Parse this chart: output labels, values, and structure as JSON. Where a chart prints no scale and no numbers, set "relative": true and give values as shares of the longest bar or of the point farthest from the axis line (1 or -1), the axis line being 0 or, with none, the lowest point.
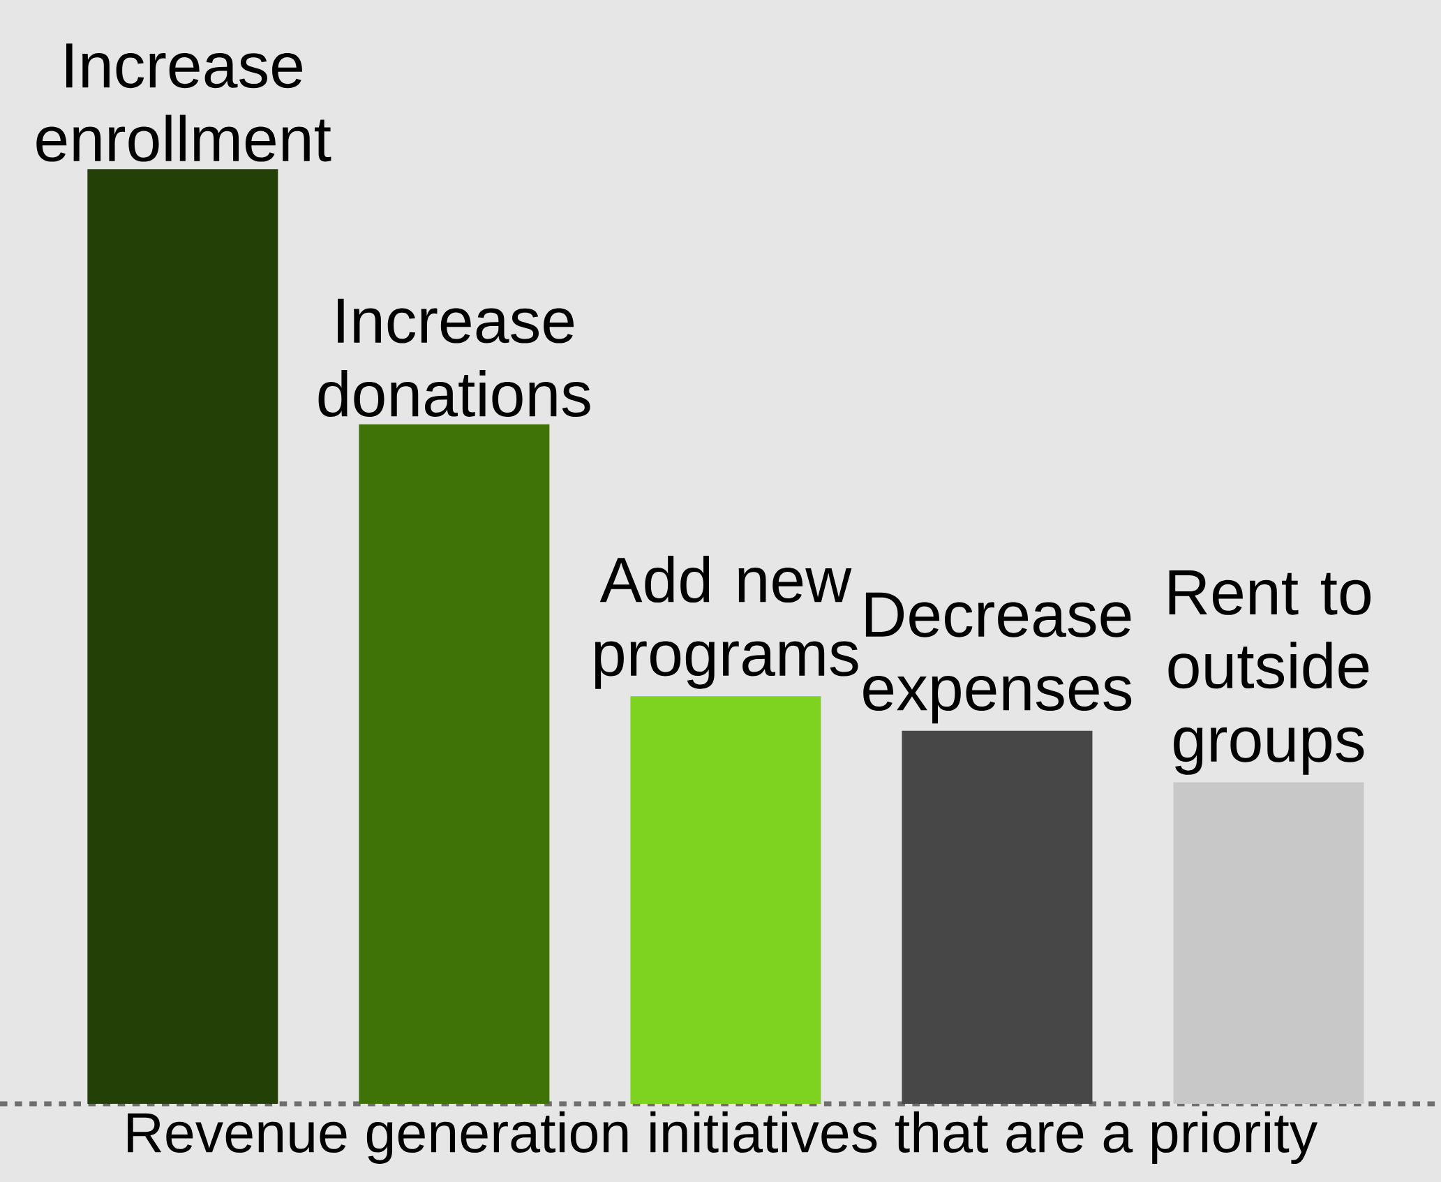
{
  "chart_data": {
    "type": "bar",
    "relative": true,
    "categories": [
      "Increase enrollment",
      "Increase donations",
      "Add new programs",
      "Decrease expenses",
      "Rent to outside groups"
    ],
    "values": [
      1,
      0.727,
      0.436,
      0.399,
      0.344
    ],
    "colors": [
      "#234107",
      "#3f7307",
      "#7ed321",
      "#474747",
      "#c8c8c8"
    ],
    "xlabel": "Revenue generation initiatives that are a priority"
  }
}
